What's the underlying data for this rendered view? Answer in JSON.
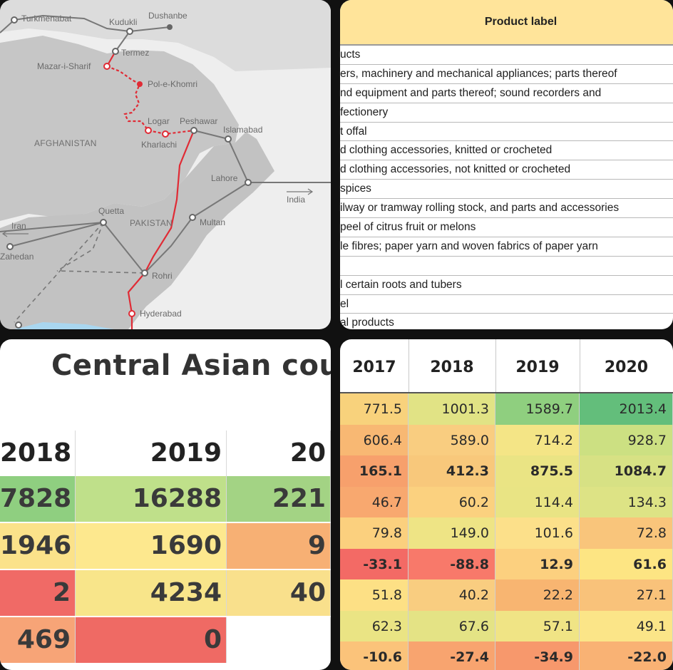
{
  "map": {
    "cities": {
      "turkmenabat": "Turkmenabat",
      "kudukli": "Kudukli",
      "dushanbe": "Dushanbe",
      "termez": "Termez",
      "mazar": "Mazar-i-Sharif",
      "pol": "Pol-e-Khomri",
      "logar": "Logar",
      "peshawar": "Peshawar",
      "islamabad": "Islamabad",
      "kharlachi": "Kharlachi",
      "lahore": "Lahore",
      "quetta": "Quetta",
      "multan": "Multan",
      "rohri": "Rohri",
      "hyderabad": "Hyderabad",
      "zahedan": "Zahedan"
    },
    "countries": {
      "afghanistan": "AFGHANISTAN",
      "pakistan": "PAKISTAN",
      "iran": "Iran",
      "india": "India"
    },
    "colors": {
      "route": "#e02b35",
      "rail": "#777777",
      "land": "#c5c5c5",
      "water": "#a9d6ef"
    }
  },
  "products": {
    "header": "Product label",
    "rows": [
      "ucts",
      "ers, machinery and mechanical appliances; parts thereof",
      "nd equipment and parts thereof; sound recorders and",
      "fectionery",
      "t offal",
      "d clothing accessories, knitted or crocheted",
      "d clothing accessories, not knitted or crocheted",
      " spices",
      "ilway or tramway rolling stock, and parts and accessories",
      "peel of citrus fruit or melons",
      "le fibres; paper yarn and woven fabrics of paper yarn",
      "",
      "l certain roots and tubers",
      "el",
      "al products"
    ]
  },
  "central_asia": {
    "title": "Central Asian count",
    "headers": [
      "2018",
      "2019",
      "20"
    ],
    "rows": [
      {
        "cells": [
          "7828",
          "16288",
          "221"
        ],
        "colors": [
          "#8fcf80",
          "#bfe08a",
          "#a3d384"
        ]
      },
      {
        "cells": [
          "1946",
          "1690",
          "9"
        ],
        "colors": [
          "#fbe28a",
          "#fde88e",
          "#f7b074"
        ]
      },
      {
        "cells": [
          "2",
          "4234",
          "40"
        ],
        "colors": [
          "#f06a66",
          "#f8e58a",
          "#f9e08c"
        ]
      },
      {
        "cells": [
          "469",
          "0",
          ""
        ],
        "colors": [
          "#f7a477",
          "#ef6a64",
          "#ffffff"
        ]
      }
    ]
  },
  "years": {
    "headers": [
      "2017",
      "2018",
      "2019",
      "2020"
    ],
    "rows": [
      {
        "cells": [
          "771.5",
          "1001.3",
          "1589.7",
          "2013.4"
        ],
        "colors": [
          "#f8d27c",
          "#e1e385",
          "#8fcf7f",
          "#63be7b"
        ],
        "bold": false
      },
      {
        "cells": [
          "606.4",
          "589.0",
          "714.2",
          "928.7"
        ],
        "colors": [
          "#f8b873",
          "#f9cd80",
          "#f4e586",
          "#cce082"
        ],
        "bold": false
      },
      {
        "cells": [
          "165.1",
          "412.3",
          "875.5",
          "1084.7"
        ],
        "colors": [
          "#f7a06c",
          "#f8c87b",
          "#eae484",
          "#d7e184"
        ],
        "bold": true
      },
      {
        "cells": [
          "46.7",
          "60.2",
          "114.4",
          "134.3"
        ],
        "colors": [
          "#f8a86f",
          "#fbd17f",
          "#e9e484",
          "#dde385"
        ],
        "bold": false
      },
      {
        "cells": [
          "79.8",
          "149.0",
          "101.6",
          "72.8"
        ],
        "colors": [
          "#fbd07e",
          "#eee485",
          "#fce08a",
          "#f9c57b"
        ],
        "bold": false
      },
      {
        "cells": [
          "-33.1",
          "-88.8",
          "12.9",
          "61.6"
        ],
        "colors": [
          "#f36a65",
          "#f8796a",
          "#fcd07f",
          "#fde583"
        ],
        "bold": true
      },
      {
        "cells": [
          "51.8",
          "40.2",
          "22.2",
          "27.1"
        ],
        "colors": [
          "#fde085",
          "#f9cd80",
          "#f8b571",
          "#f9c27a"
        ],
        "bold": false
      },
      {
        "cells": [
          "62.3",
          "67.6",
          "57.1",
          "49.1"
        ],
        "colors": [
          "#eae484",
          "#e4e385",
          "#f0e485",
          "#fbe588"
        ],
        "bold": false
      },
      {
        "cells": [
          "-10.6",
          "-27.4",
          "-34.9",
          "-22.0"
        ],
        "colors": [
          "#fbc37a",
          "#f8a46f",
          "#f7986c",
          "#f9b274"
        ],
        "bold": true
      }
    ]
  }
}
